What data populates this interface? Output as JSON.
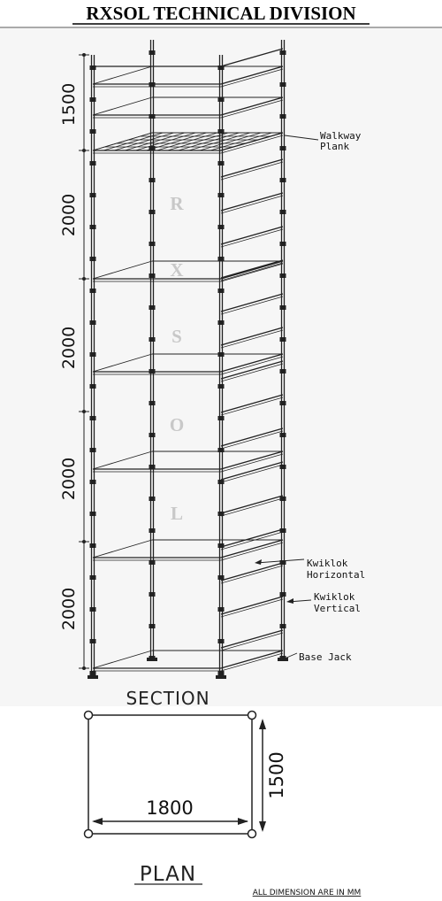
{
  "header": {
    "title": "RXSOL TECHNICAL DIVISION"
  },
  "section": {
    "label": "SECTION",
    "dimensions": [
      1500,
      2000,
      2000,
      2000,
      2000
    ],
    "watermark": [
      "R",
      "X",
      "S",
      "O",
      "L"
    ],
    "callouts": [
      {
        "lines": [
          "Walkway",
          "Plank"
        ]
      },
      {
        "lines": [
          "Kwiklok",
          "Horizontal"
        ]
      },
      {
        "lines": [
          "Kwiklok",
          "Vertical"
        ]
      },
      {
        "lines": [
          "Base Jack"
        ]
      }
    ]
  },
  "plan": {
    "label": "PLAN",
    "width": 1800,
    "depth": 1500
  },
  "note": "ALL DIMENSION ARE IN MM"
}
